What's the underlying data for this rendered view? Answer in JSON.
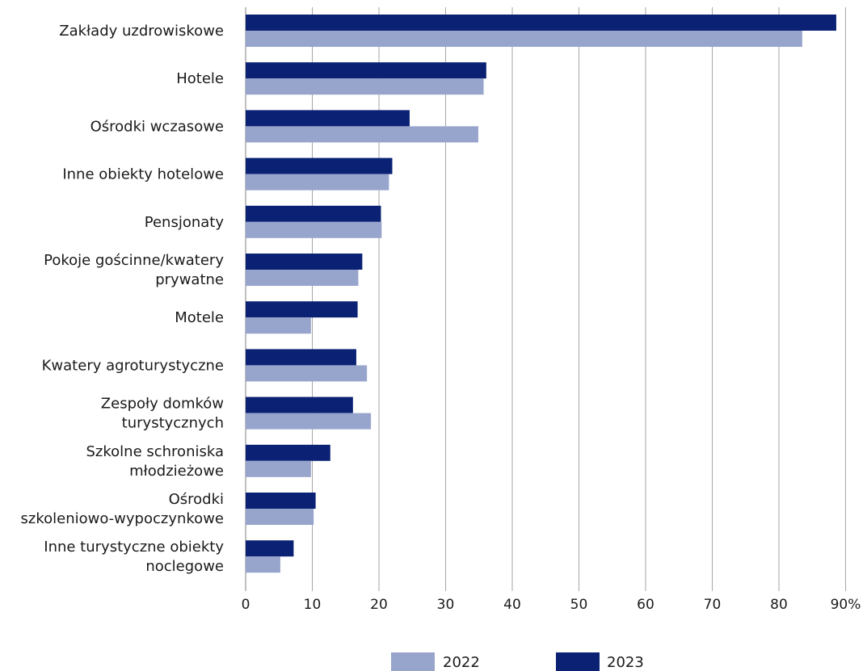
{
  "chart_data": {
    "type": "bar",
    "orientation": "horizontal",
    "categories": [
      [
        "Zakłady uzdrowiskowe"
      ],
      [
        "Hotele"
      ],
      [
        "Ośrodki wczasowe"
      ],
      [
        "Inne obiekty hotelowe"
      ],
      [
        "Pensjonaty"
      ],
      [
        "Pokoje gościnne/kwatery",
        "prywatne"
      ],
      [
        "Motele"
      ],
      [
        "Kwatery agroturystyczne"
      ],
      [
        "Zespoły domków",
        "turystycznych"
      ],
      [
        "Szkolne schroniska",
        "młodzieżowe"
      ],
      [
        "Ośrodki",
        "szkoleniowo-wypoczynkowe"
      ],
      [
        "Inne turystyczne obiekty",
        "noclegowe"
      ]
    ],
    "series": [
      {
        "name": "2023",
        "color": "#0b2274",
        "values": [
          88.6,
          36.1,
          24.6,
          22.0,
          20.3,
          17.5,
          16.8,
          16.6,
          16.1,
          12.7,
          10.5,
          7.2
        ]
      },
      {
        "name": "2022",
        "color": "#97a4cc",
        "values": [
          83.5,
          35.7,
          34.9,
          21.5,
          20.4,
          16.9,
          9.8,
          18.2,
          18.8,
          9.8,
          10.2,
          5.2
        ]
      }
    ],
    "x_ticks": [
      "0",
      "10",
      "20",
      "30",
      "40",
      "50",
      "60",
      "70",
      "80",
      "90%"
    ],
    "xlim": [
      0,
      90
    ],
    "grid": true,
    "legend": {
      "position": "bottom",
      "order": [
        "2022",
        "2023"
      ]
    },
    "title": "",
    "xlabel": "",
    "ylabel": ""
  }
}
